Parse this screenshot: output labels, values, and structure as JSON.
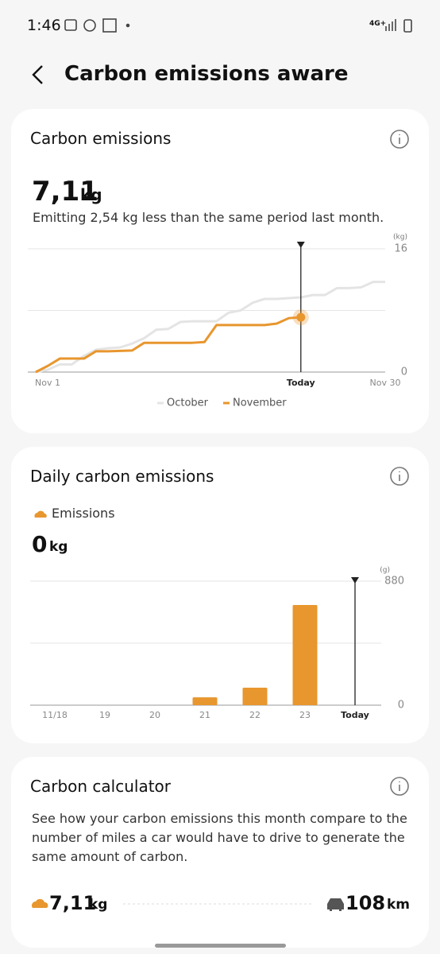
{
  "status": {
    "time": "1:46",
    "network": "4G+"
  },
  "header": {
    "title": "Carbon emissions aware"
  },
  "emissions_card": {
    "title": "Carbon emissions",
    "total_value": "7,11",
    "total_unit": "kg",
    "summary": "Emitting 2,54 kg less than the same period last month."
  },
  "daily_card": {
    "title": "Daily carbon emissions",
    "legend": "Emissions",
    "value": "0",
    "unit": "kg"
  },
  "calculator_card": {
    "title": "Carbon calculator",
    "description": "See how your carbon emissions this month compare to the number of miles a car would have to drive to generate the same amount of carbon.",
    "carbon_value": "7,11",
    "carbon_unit": "kg",
    "distance_value": "108",
    "distance_unit": "km"
  },
  "chart_data": [
    {
      "type": "line",
      "y_unit": "(kg)",
      "x": [
        1,
        2,
        3,
        4,
        5,
        6,
        7,
        8,
        9,
        10,
        11,
        12,
        13,
        14,
        15,
        16,
        17,
        18,
        19,
        20,
        21,
        22,
        23,
        24,
        25,
        26,
        27,
        28,
        29,
        30
      ],
      "xlim": [
        1,
        30
      ],
      "xticks": [
        {
          "value": 1,
          "label": "Nov 1"
        },
        {
          "value": 23,
          "label": "Today"
        },
        {
          "value": 30,
          "label": "Nov 30"
        }
      ],
      "ylim": [
        0,
        16
      ],
      "yticks": [
        0,
        16
      ],
      "series": [
        {
          "name": "October",
          "color": "#e4e4e4",
          "values": [
            0,
            0.3,
            1.0,
            1.0,
            2.1,
            2.9,
            3.1,
            3.2,
            3.7,
            4.4,
            5.5,
            5.6,
            6.5,
            6.6,
            6.6,
            6.6,
            7.7,
            8.0,
            9.0,
            9.5,
            9.5,
            9.6,
            9.7,
            10.0,
            10.0,
            10.9,
            10.9,
            11.0,
            11.7,
            11.7
          ]
        },
        {
          "name": "November",
          "color": "#e8962e",
          "values": [
            0,
            0.8,
            1.75,
            1.75,
            1.75,
            2.7,
            2.7,
            2.75,
            2.8,
            3.8,
            3.8,
            3.8,
            3.8,
            3.8,
            3.9,
            6.1,
            6.1,
            6.1,
            6.1,
            6.1,
            6.3,
            7.0,
            7.11,
            null,
            null,
            null,
            null,
            null,
            null,
            null
          ]
        }
      ]
    },
    {
      "type": "bar",
      "y_unit": "(g)",
      "color": "#e8962e",
      "categories": [
        "11/18",
        "19",
        "20",
        "21",
        "22",
        "23",
        "Today"
      ],
      "values": [
        0,
        0,
        0,
        56,
        124,
        711,
        0
      ],
      "ylim": [
        0,
        880
      ],
      "yticks": [
        0,
        880
      ]
    }
  ]
}
